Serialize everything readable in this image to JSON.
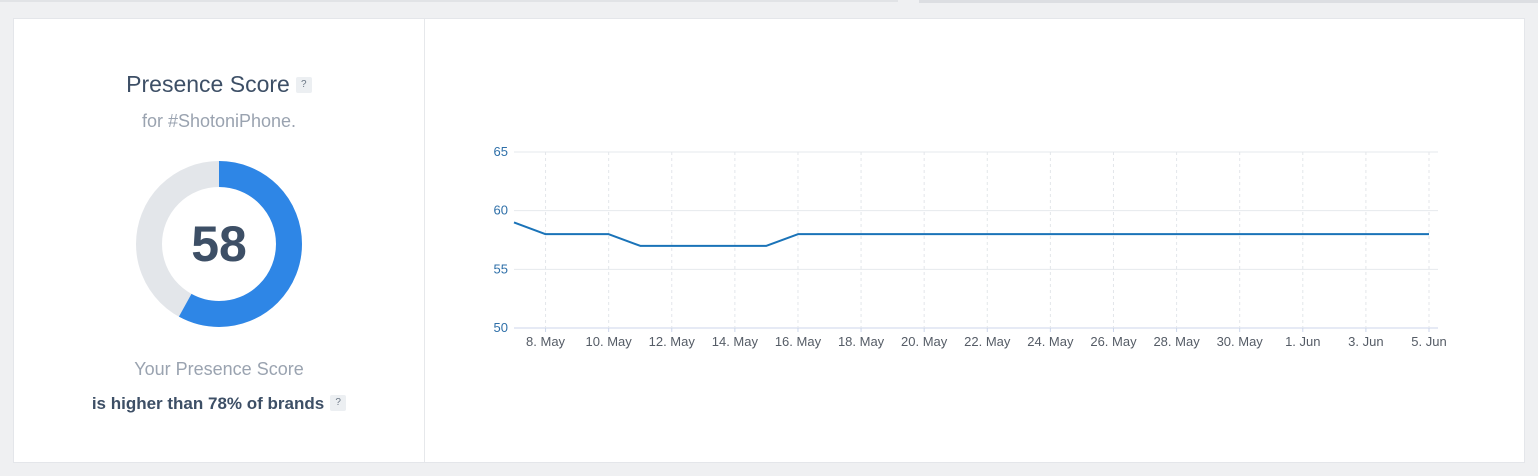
{
  "score_panel": {
    "title": "Presence Score",
    "help_label": "?",
    "subtitle": "for #ShotoniPhone.",
    "score": 58,
    "score_max": 100,
    "caption_line1": "Your Presence Score",
    "caption_line2": "is higher than 78% of brands",
    "colors": {
      "ring_fill": "#2e86e6",
      "ring_track": "#e3e6ea"
    }
  },
  "chart_data": {
    "type": "line",
    "y_ticks": [
      "65",
      "60",
      "55",
      "50"
    ],
    "ylim": [
      50,
      65
    ],
    "x_ticks": [
      "8. May",
      "10. May",
      "12. May",
      "14. May",
      "16. May",
      "18. May",
      "20. May",
      "22. May",
      "24. May",
      "26. May",
      "28. May",
      "30. May",
      "1. Jun",
      "3. Jun",
      "5. Jun"
    ],
    "x_dates": [
      "7. May",
      "8. May",
      "9. May",
      "10. May",
      "11. May",
      "12. May",
      "13. May",
      "14. May",
      "15. May",
      "16. May",
      "17. May",
      "18. May",
      "19. May",
      "20. May",
      "21. May",
      "22. May",
      "23. May",
      "24. May",
      "25. May",
      "26. May",
      "27. May",
      "28. May",
      "29. May",
      "30. May",
      "31. May",
      "1. Jun",
      "2. Jun",
      "3. Jun",
      "4. Jun",
      "5. Jun"
    ],
    "series": [
      {
        "values": [
          59,
          58,
          58,
          58,
          57,
          57,
          57,
          57,
          57,
          58,
          58,
          58,
          58,
          58,
          58,
          58,
          58,
          58,
          58,
          58,
          58,
          58,
          58,
          58,
          58,
          58,
          58,
          58,
          58,
          58
        ]
      }
    ],
    "grid": true,
    "line_color": "#1a73b8"
  }
}
